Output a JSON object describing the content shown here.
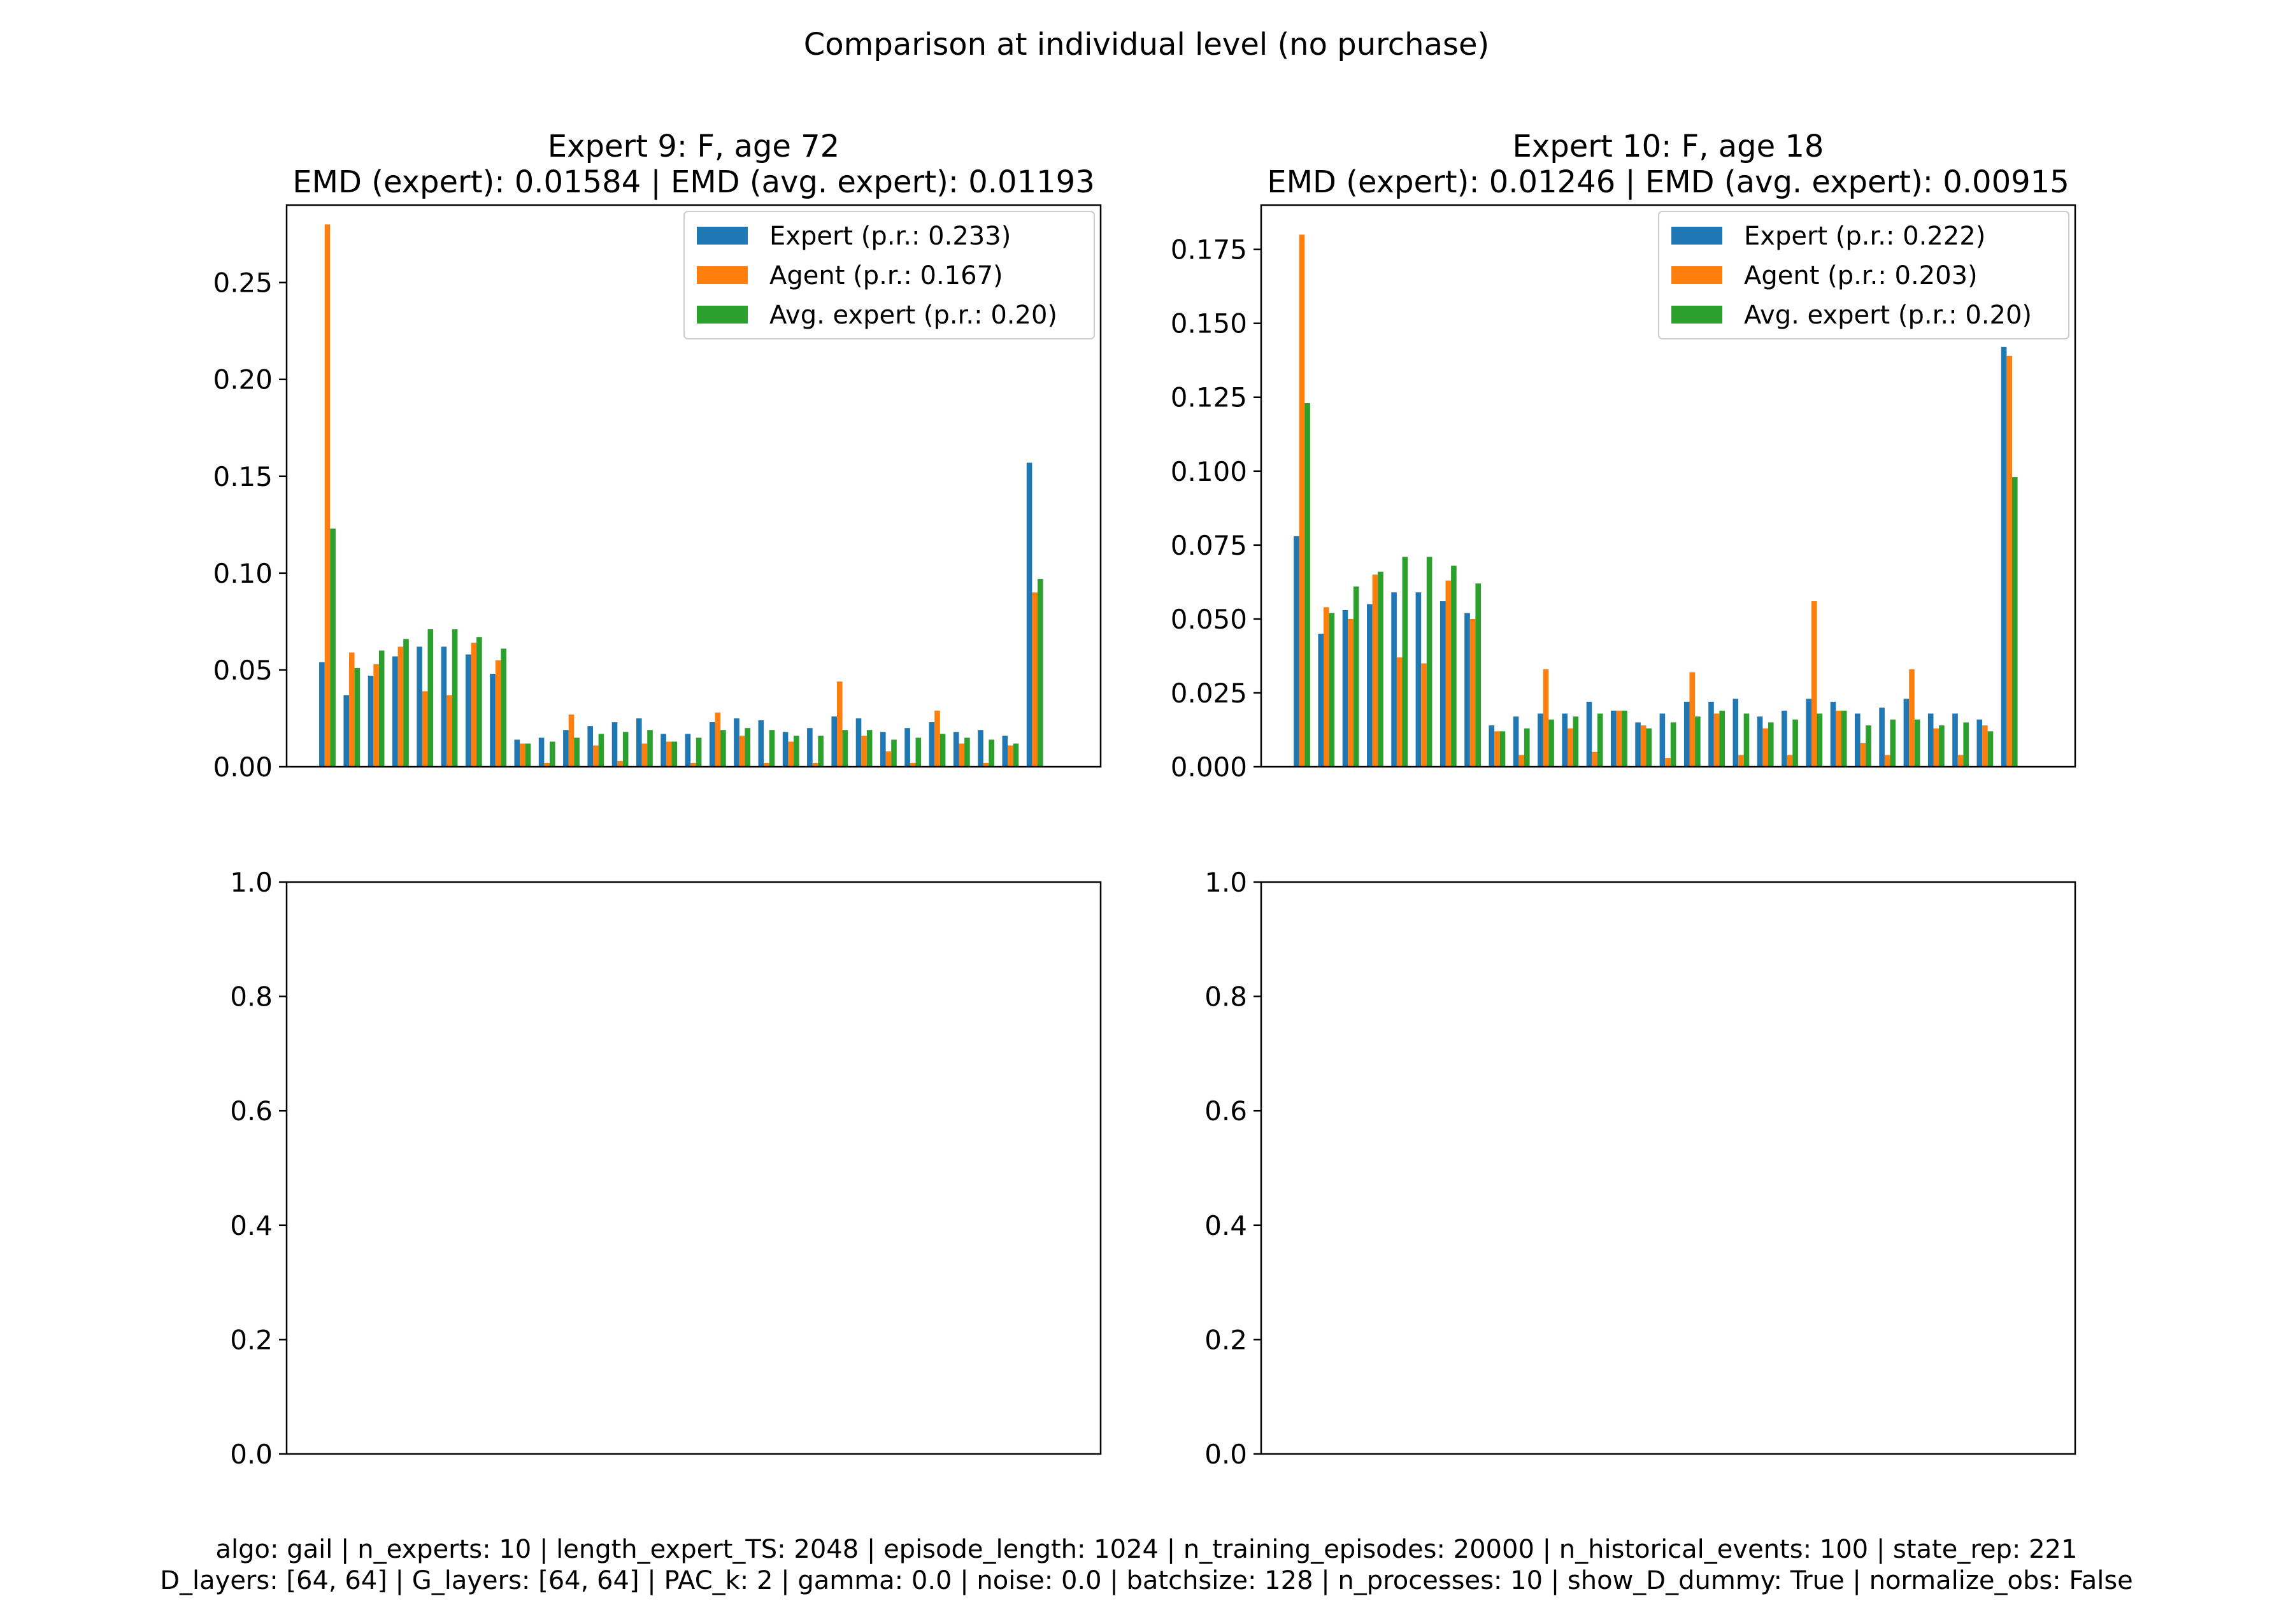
{
  "suptitle": "Comparison at individual level (no purchase)",
  "footer_lines": [
    "algo: gail | n_experts: 10 | length_expert_TS: 2048 | episode_length: 1024 | n_training_episodes: 20000 | n_historical_events: 100 | state_rep: 221",
    "D_layers: [64, 64] | G_layers: [64, 64] | PAC_k: 2 | gamma: 0.0 | noise: 0.0 | batchsize: 128 | n_processes: 10 | show_D_dummy: True | normalize_obs: False"
  ],
  "colors": {
    "expert": "#1f77b4",
    "agent": "#ff7f0e",
    "avg_expert": "#2ca02c"
  },
  "chart_data": [
    {
      "type": "bar",
      "title_line1": "Expert 9: F, age 72",
      "title_line2": "EMD (expert): 0.01584 | EMD (avg. expert): 0.01193",
      "ylim": [
        0,
        0.29
      ],
      "yticks": [
        "0.00",
        "0.05",
        "0.10",
        "0.15",
        "0.20",
        "0.25"
      ],
      "legend_position": "upper-right",
      "series": [
        {
          "name": "Expert (p.r.: 0.233)",
          "values": [
            0.054,
            0.037,
            0.047,
            0.057,
            0.062,
            0.062,
            0.058,
            0.048,
            0.014,
            0.015,
            0.019,
            0.021,
            0.023,
            0.025,
            0.017,
            0.017,
            0.023,
            0.025,
            0.024,
            0.018,
            0.02,
            0.026,
            0.025,
            0.018,
            0.02,
            0.023,
            0.018,
            0.019,
            0.016,
            0.157
          ]
        },
        {
          "name": "Agent (p.r.: 0.167)",
          "values": [
            0.28,
            0.059,
            0.053,
            0.062,
            0.039,
            0.037,
            0.064,
            0.055,
            0.012,
            0.002,
            0.027,
            0.011,
            0.003,
            0.012,
            0.013,
            0.002,
            0.028,
            0.016,
            0.002,
            0.013,
            0.002,
            0.044,
            0.016,
            0.008,
            0.002,
            0.029,
            0.012,
            0.002,
            0.011,
            0.09
          ]
        },
        {
          "name": "Avg. expert (p.r.: 0.20)",
          "values": [
            0.123,
            0.051,
            0.06,
            0.066,
            0.071,
            0.071,
            0.067,
            0.061,
            0.012,
            0.013,
            0.015,
            0.017,
            0.018,
            0.019,
            0.013,
            0.015,
            0.019,
            0.02,
            0.019,
            0.016,
            0.016,
            0.019,
            0.019,
            0.014,
            0.015,
            0.017,
            0.015,
            0.014,
            0.012,
            0.097
          ]
        }
      ]
    },
    {
      "type": "bar",
      "title_line1": "Expert 10: F, age 18",
      "title_line2": "EMD (expert): 0.01246 | EMD (avg. expert): 0.00915",
      "ylim": [
        0,
        0.19
      ],
      "yticks": [
        "0.000",
        "0.025",
        "0.050",
        "0.075",
        "0.100",
        "0.125",
        "0.150",
        "0.175"
      ],
      "legend_position": "upper-right",
      "series": [
        {
          "name": "Expert (p.r.: 0.222)",
          "values": [
            0.078,
            0.045,
            0.053,
            0.055,
            0.059,
            0.059,
            0.056,
            0.052,
            0.014,
            0.017,
            0.018,
            0.018,
            0.022,
            0.019,
            0.015,
            0.018,
            0.022,
            0.022,
            0.023,
            0.017,
            0.019,
            0.023,
            0.022,
            0.018,
            0.02,
            0.023,
            0.018,
            0.018,
            0.016,
            0.142
          ]
        },
        {
          "name": "Agent (p.r.: 0.203)",
          "values": [
            0.18,
            0.054,
            0.05,
            0.065,
            0.037,
            0.035,
            0.063,
            0.05,
            0.012,
            0.004,
            0.033,
            0.013,
            0.005,
            0.019,
            0.014,
            0.003,
            0.032,
            0.018,
            0.004,
            0.013,
            0.004,
            0.056,
            0.019,
            0.008,
            0.004,
            0.033,
            0.013,
            0.004,
            0.014,
            0.139
          ]
        },
        {
          "name": "Avg. expert (p.r.: 0.20)",
          "values": [
            0.123,
            0.052,
            0.061,
            0.066,
            0.071,
            0.071,
            0.068,
            0.062,
            0.012,
            0.013,
            0.016,
            0.017,
            0.018,
            0.019,
            0.013,
            0.015,
            0.017,
            0.019,
            0.018,
            0.015,
            0.016,
            0.018,
            0.019,
            0.014,
            0.016,
            0.016,
            0.014,
            0.015,
            0.012,
            0.098
          ]
        }
      ]
    },
    {
      "type": "bar",
      "title_line1": "",
      "title_line2": "",
      "ylim": [
        0,
        1
      ],
      "yticks": [
        "0.0",
        "0.2",
        "0.4",
        "0.6",
        "0.8",
        "1.0"
      ],
      "series": []
    },
    {
      "type": "bar",
      "title_line1": "",
      "title_line2": "",
      "ylim": [
        0,
        1
      ],
      "yticks": [
        "0.0",
        "0.2",
        "0.4",
        "0.6",
        "0.8",
        "1.0"
      ],
      "series": []
    }
  ]
}
